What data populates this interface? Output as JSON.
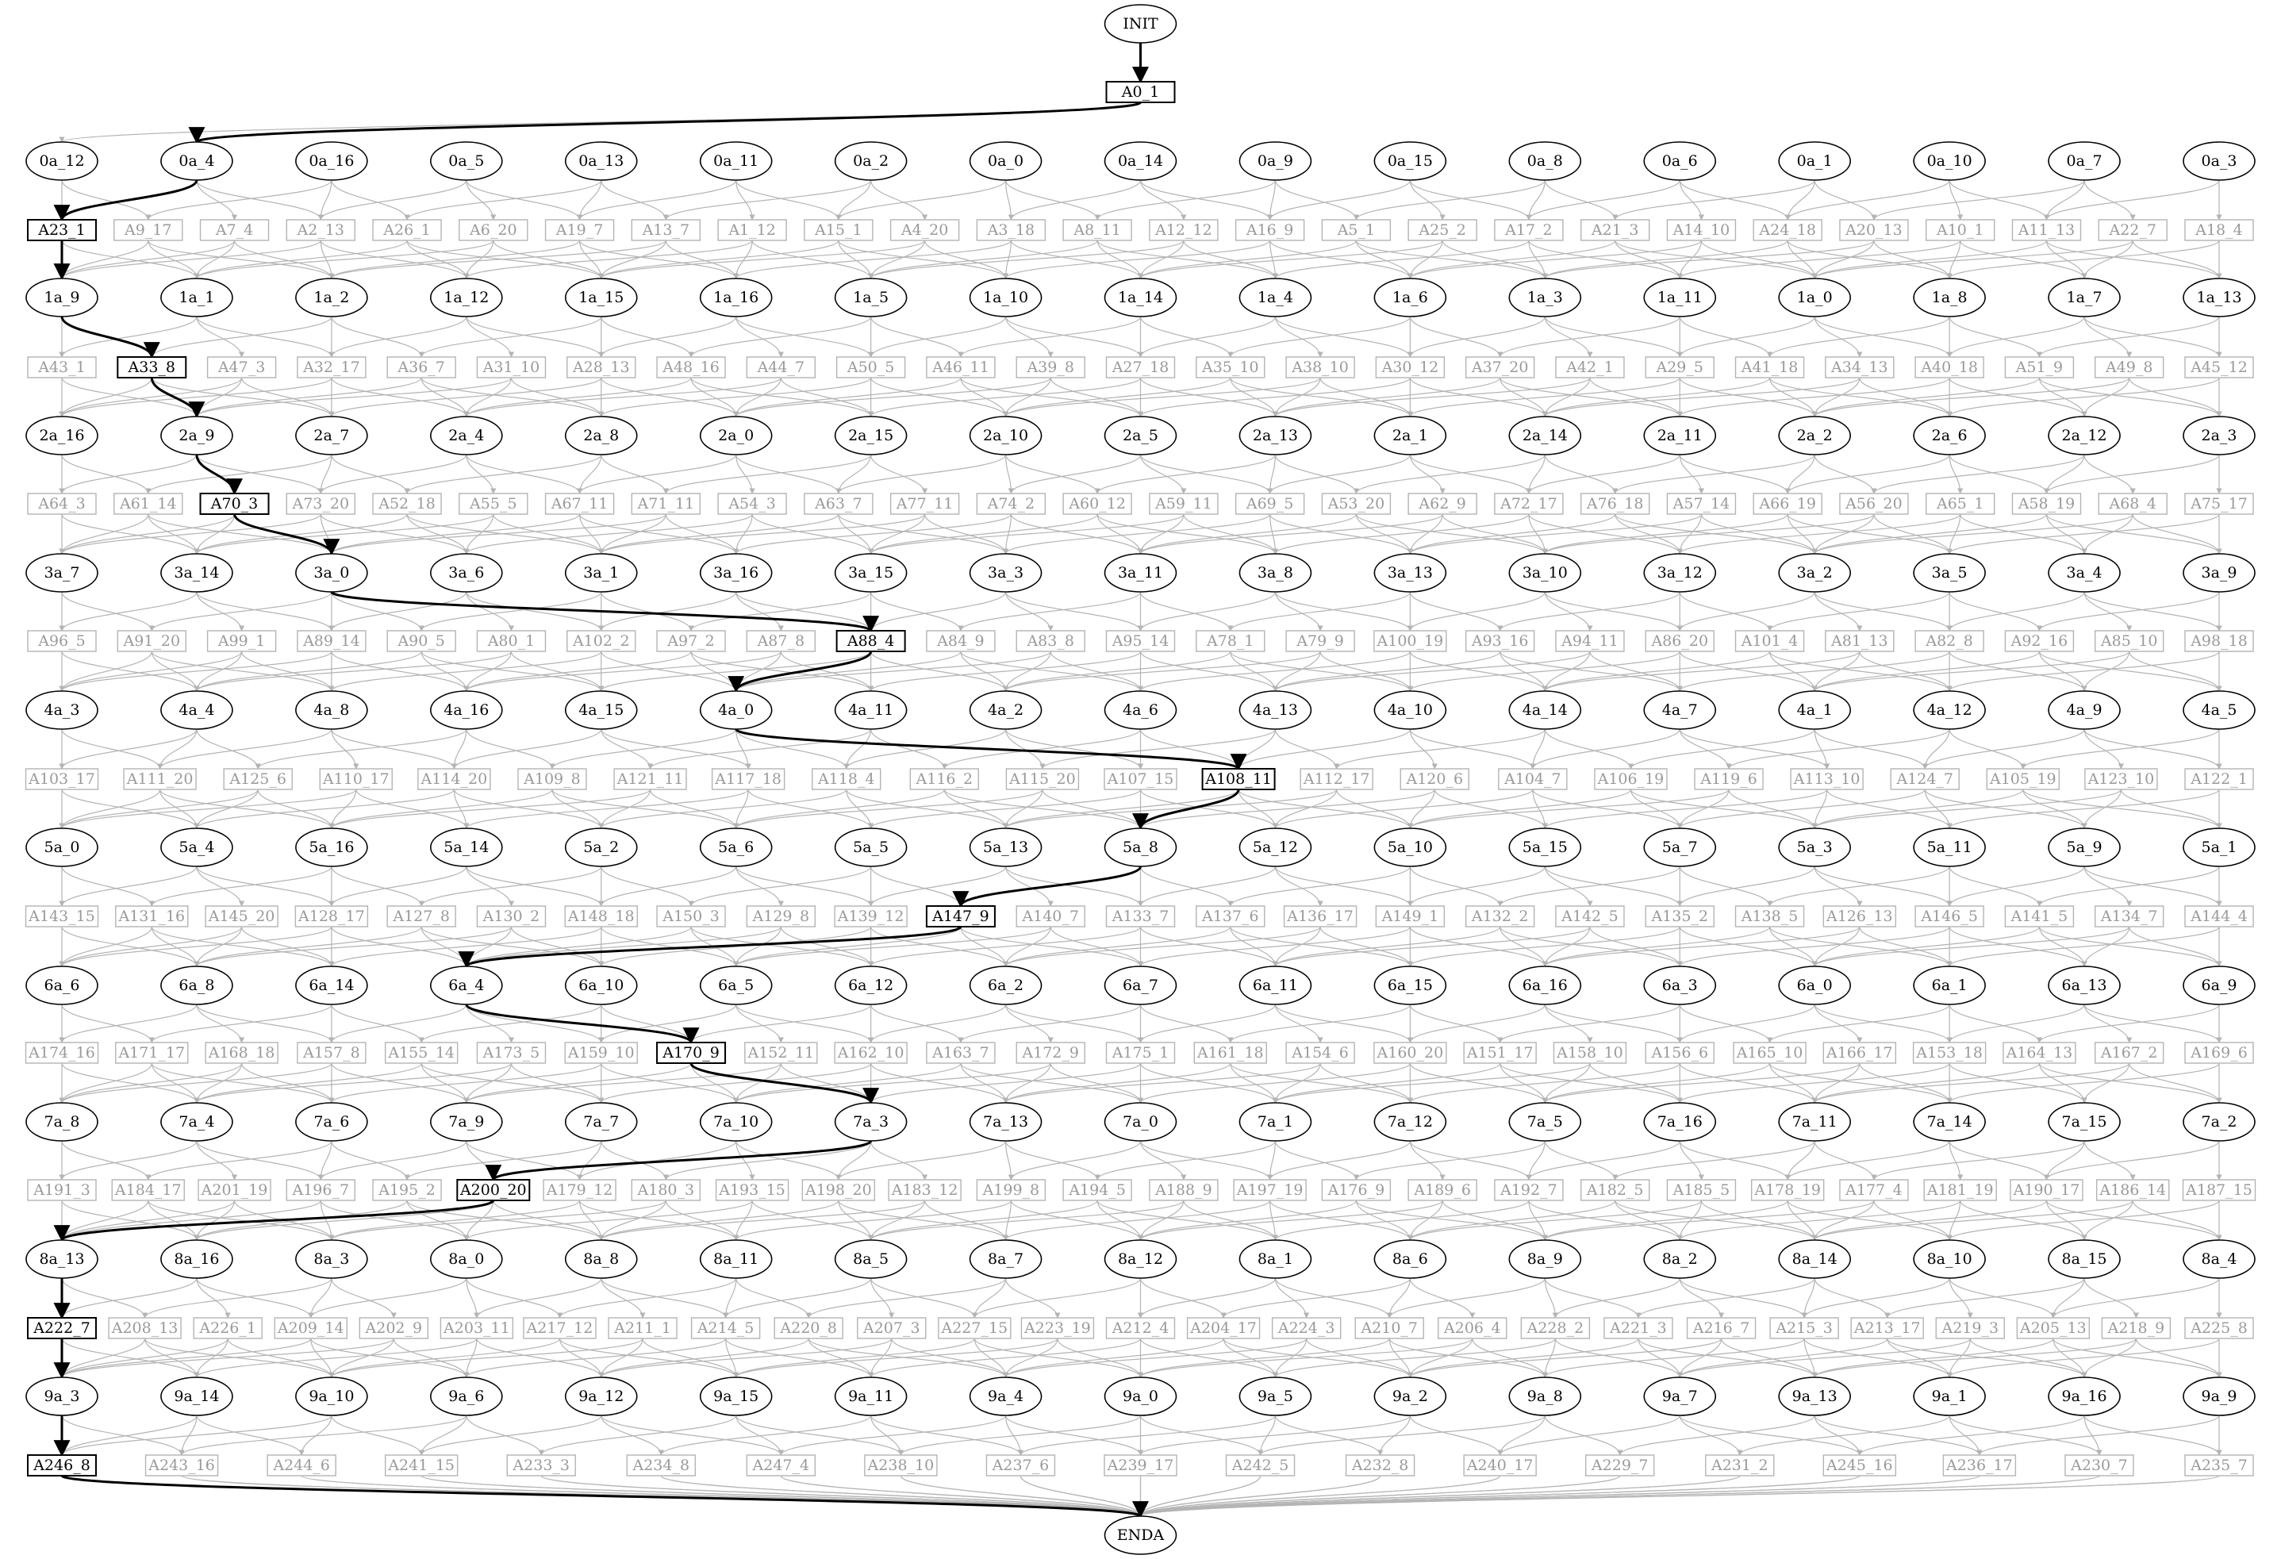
{
  "diagram": {
    "start": "INIT",
    "end": "ENDA",
    "root": "A0_1",
    "colors": {
      "main": "#000000",
      "faint": "#b4b4b4",
      "faint_text": "#9a9a9a",
      "background": "#ffffff"
    },
    "layers": [
      {
        "row": 0,
        "nodes": [
          {
            "label": "INIT",
            "shape": "ellipse"
          }
        ]
      },
      {
        "row": 1,
        "nodes": [
          {
            "label": "A0_1",
            "shape": "box"
          }
        ]
      },
      {
        "row": 2,
        "nodes": [
          "0a_12",
          "0a_4",
          "0a_16",
          "0a_5",
          "0a_13",
          "0a_11",
          "0a_2",
          "0a_0",
          "0a_14",
          "0a_9",
          "0a_15",
          "0a_8",
          "0a_6",
          "0a_1",
          "0a_10",
          "0a_7",
          "0a_3"
        ]
      },
      {
        "row": 3,
        "nodes": [
          "A23_1",
          "A9_17",
          "A7_4",
          "A2_13",
          "A26_1",
          "A6_20",
          "A19_7",
          "A13_7",
          "A1_12",
          "A15_1",
          "A4_20",
          "A3_18",
          "A8_11",
          "A12_12",
          "A16_9",
          "A5_1",
          "A25_2",
          "A17_2",
          "A21_3",
          "A14_10",
          "A24_18",
          "A20_13",
          "A10_1",
          "A11_13",
          "A22_7",
          "A18_4"
        ]
      },
      {
        "row": 4,
        "nodes": [
          "1a_9",
          "1a_1",
          "1a_2",
          "1a_12",
          "1a_15",
          "1a_16",
          "1a_5",
          "1a_10",
          "1a_14",
          "1a_4",
          "1a_6",
          "1a_3",
          "1a_11",
          "1a_0",
          "1a_8",
          "1a_7",
          "1a_13"
        ]
      },
      {
        "row": 5,
        "nodes": [
          "A43_1",
          "A33_8",
          "A47_3",
          "A32_17",
          "A36_7",
          "A31_10",
          "A28_13",
          "A48_16",
          "A44_7",
          "A50_5",
          "A46_11",
          "A39_8",
          "A27_18",
          "A35_10",
          "A38_10",
          "A30_12",
          "A37_20",
          "A42_1",
          "A29_5",
          "A41_18",
          "A34_13",
          "A40_18",
          "A51_9",
          "A49_8",
          "A45_12"
        ]
      },
      {
        "row": 6,
        "nodes": [
          "2a_16",
          "2a_9",
          "2a_7",
          "2a_4",
          "2a_8",
          "2a_0",
          "2a_15",
          "2a_10",
          "2a_5",
          "2a_13",
          "2a_1",
          "2a_14",
          "2a_11",
          "2a_2",
          "2a_6",
          "2a_12",
          "2a_3"
        ]
      },
      {
        "row": 7,
        "nodes": [
          "A64_3",
          "A61_14",
          "A70_3",
          "A73_20",
          "A52_18",
          "A55_5",
          "A67_11",
          "A71_11",
          "A54_3",
          "A63_7",
          "A77_11",
          "A74_2",
          "A60_12",
          "A59_11",
          "A69_5",
          "A53_20",
          "A62_9",
          "A72_17",
          "A76_18",
          "A57_14",
          "A66_19",
          "A56_20",
          "A65_1",
          "A58_19",
          "A68_4",
          "A75_17"
        ]
      },
      {
        "row": 8,
        "nodes": [
          "3a_7",
          "3a_14",
          "3a_0",
          "3a_6",
          "3a_1",
          "3a_16",
          "3a_15",
          "3a_3",
          "3a_11",
          "3a_8",
          "3a_13",
          "3a_10",
          "3a_12",
          "3a_2",
          "3a_5",
          "3a_4",
          "3a_9"
        ]
      },
      {
        "row": 9,
        "nodes": [
          "A96_5",
          "A91_20",
          "A99_1",
          "A89_14",
          "A90_5",
          "A80_1",
          "A102_2",
          "A97_2",
          "A87_8",
          "A88_4",
          "A84_9",
          "A83_8",
          "A95_14",
          "A78_1",
          "A79_9",
          "A100_19",
          "A93_16",
          "A94_11",
          "A86_20",
          "A101_4",
          "A81_13",
          "A82_8",
          "A92_16",
          "A85_10",
          "A98_18"
        ]
      },
      {
        "row": 10,
        "nodes": [
          "4a_3",
          "4a_4",
          "4a_8",
          "4a_16",
          "4a_15",
          "4a_0",
          "4a_11",
          "4a_2",
          "4a_6",
          "4a_13",
          "4a_10",
          "4a_14",
          "4a_7",
          "4a_1",
          "4a_12",
          "4a_9",
          "4a_5"
        ]
      },
      {
        "row": 11,
        "nodes": [
          "A103_17",
          "A111_20",
          "A125_6",
          "A110_17",
          "A114_20",
          "A109_8",
          "A121_11",
          "A117_18",
          "A118_4",
          "A116_2",
          "A115_20",
          "A107_15",
          "A108_11",
          "A112_17",
          "A120_6",
          "A104_7",
          "A106_19",
          "A119_6",
          "A113_10",
          "A124_7",
          "A105_19",
          "A123_10",
          "A122_1"
        ]
      },
      {
        "row": 12,
        "nodes": [
          "5a_0",
          "5a_4",
          "5a_16",
          "5a_14",
          "5a_2",
          "5a_6",
          "5a_5",
          "5a_13",
          "5a_8",
          "5a_12",
          "5a_10",
          "5a_15",
          "5a_7",
          "5a_3",
          "5a_11",
          "5a_9",
          "5a_1"
        ]
      },
      {
        "row": 13,
        "nodes": [
          "A143_15",
          "A131_16",
          "A145_20",
          "A128_17",
          "A127_8",
          "A130_2",
          "A148_18",
          "A150_3",
          "A129_8",
          "A139_12",
          "A147_9",
          "A140_7",
          "A133_7",
          "A137_6",
          "A136_17",
          "A149_1",
          "A132_2",
          "A142_5",
          "A135_2",
          "A138_5",
          "A126_13",
          "A146_5",
          "A141_5",
          "A134_7",
          "A144_4"
        ]
      },
      {
        "row": 14,
        "nodes": [
          "6a_6",
          "6a_8",
          "6a_14",
          "6a_4",
          "6a_10",
          "6a_5",
          "6a_12",
          "6a_2",
          "6a_7",
          "6a_11",
          "6a_15",
          "6a_16",
          "6a_3",
          "6a_0",
          "6a_1",
          "6a_13",
          "6a_9"
        ]
      },
      {
        "row": 15,
        "nodes": [
          "A174_16",
          "A171_17",
          "A168_18",
          "A157_8",
          "A155_14",
          "A173_5",
          "A159_10",
          "A170_9",
          "A152_11",
          "A162_10",
          "A163_7",
          "A172_9",
          "A175_1",
          "A161_18",
          "A154_6",
          "A160_20",
          "A151_17",
          "A158_10",
          "A156_6",
          "A165_10",
          "A166_17",
          "A153_18",
          "A164_13",
          "A167_2",
          "A169_6"
        ]
      },
      {
        "row": 16,
        "nodes": [
          "7a_8",
          "7a_4",
          "7a_6",
          "7a_9",
          "7a_7",
          "7a_10",
          "7a_3",
          "7a_13",
          "7a_0",
          "7a_1",
          "7a_12",
          "7a_5",
          "7a_16",
          "7a_11",
          "7a_14",
          "7a_15",
          "7a_2"
        ]
      },
      {
        "row": 17,
        "nodes": [
          "A191_3",
          "A184_17",
          "A201_19",
          "A196_7",
          "A195_2",
          "A200_20",
          "A179_12",
          "A180_3",
          "A193_15",
          "A198_20",
          "A183_12",
          "A199_8",
          "A194_5",
          "A188_9",
          "A197_19",
          "A176_9",
          "A189_6",
          "A192_7",
          "A182_5",
          "A185_5",
          "A178_19",
          "A177_4",
          "A181_19",
          "A190_17",
          "A186_14",
          "A187_15"
        ]
      },
      {
        "row": 18,
        "nodes": [
          "8a_13",
          "8a_16",
          "8a_3",
          "8a_0",
          "8a_8",
          "8a_11",
          "8a_5",
          "8a_7",
          "8a_12",
          "8a_1",
          "8a_6",
          "8a_9",
          "8a_2",
          "8a_14",
          "8a_10",
          "8a_15",
          "8a_4"
        ]
      },
      {
        "row": 19,
        "nodes": [
          "A222_7",
          "A208_13",
          "A226_1",
          "A209_14",
          "A202_9",
          "A203_11",
          "A217_12",
          "A211_1",
          "A214_5",
          "A220_8",
          "A207_3",
          "A227_15",
          "A223_19",
          "A212_4",
          "A204_17",
          "A224_3",
          "A210_7",
          "A206_4",
          "A228_2",
          "A221_3",
          "A216_7",
          "A215_3",
          "A213_17",
          "A219_3",
          "A205_13",
          "A218_9",
          "A225_8"
        ]
      },
      {
        "row": 20,
        "nodes": [
          "9a_3",
          "9a_14",
          "9a_10",
          "9a_6",
          "9a_12",
          "9a_15",
          "9a_11",
          "9a_4",
          "9a_0",
          "9a_5",
          "9a_2",
          "9a_8",
          "9a_7",
          "9a_13",
          "9a_1",
          "9a_16",
          "9a_9"
        ]
      },
      {
        "row": 21,
        "nodes": [
          "A246_8",
          "A243_16",
          "A244_6",
          "A241_15",
          "A233_3",
          "A234_8",
          "A247_4",
          "A238_10",
          "A237_6",
          "A239_17",
          "A242_5",
          "A232_8",
          "A240_17",
          "A229_7",
          "A231_2",
          "A245_16",
          "A236_17",
          "A230_7",
          "A235_7"
        ]
      },
      {
        "row": 22,
        "nodes": [
          {
            "label": "ENDA",
            "shape": "ellipse"
          }
        ]
      }
    ],
    "highlighted_path": [
      "INIT",
      "A0_1",
      "0a_4",
      "A23_1",
      "1a_9",
      "A33_8",
      "2a_9",
      "A70_3",
      "3a_0",
      "A88_4",
      "4a_0",
      "A108_11",
      "5a_8",
      "A147_9",
      "6a_4",
      "A170_9",
      "7a_3",
      "A200_20",
      "8a_13",
      "A222_7",
      "9a_3",
      "A246_8",
      "ENDA"
    ]
  }
}
